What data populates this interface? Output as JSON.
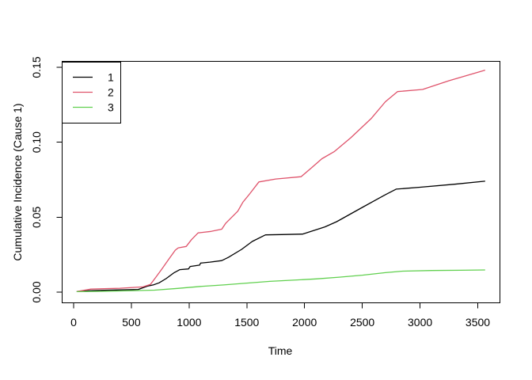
{
  "figure": {
    "background": "#FFFFFF",
    "border_color": "#000000"
  },
  "chart_data": {
    "type": "line",
    "title": "",
    "xlabel": "Time",
    "ylabel": "Cumulative Incidence (Cause 1)",
    "x_ticks": [
      "0",
      "500",
      "1000",
      "1500",
      "2000",
      "2500",
      "3000",
      "3500"
    ],
    "y_ticks": [
      "0.00",
      "0.05",
      "0.10",
      "0.15"
    ],
    "xlim": [
      -140,
      3700
    ],
    "ylim": [
      -0.007,
      0.154
    ],
    "grid": false,
    "legend_position": "top-left",
    "legend": [
      {
        "label": "1",
        "color": "#000000"
      },
      {
        "label": "2",
        "color": "#DF536B"
      },
      {
        "label": "3",
        "color": "#61D04F"
      }
    ],
    "series": [
      {
        "name": "1",
        "color": "#000000",
        "x": [
          30,
          150,
          400,
          560,
          640,
          690,
          740,
          800,
          871,
          920,
          995,
          1009,
          1091,
          1100,
          1180,
          1283,
          1340,
          1455,
          1547,
          1661,
          1800,
          1982,
          2176,
          2278,
          2500,
          2700,
          2793,
          3000,
          3300,
          3560
        ],
        "y": [
          0.0004,
          0.001,
          0.0015,
          0.0018,
          0.004,
          0.0048,
          0.0062,
          0.009,
          0.013,
          0.015,
          0.0155,
          0.0171,
          0.018,
          0.0194,
          0.02,
          0.021,
          0.0232,
          0.0285,
          0.0338,
          0.0382,
          0.0384,
          0.0387,
          0.0435,
          0.047,
          0.0565,
          0.065,
          0.0687,
          0.07,
          0.072,
          0.074
        ]
      },
      {
        "name": "2",
        "color": "#DF536B",
        "x": [
          30,
          150,
          400,
          600,
          666,
          712,
          760,
          820,
          880,
          906,
          975,
          1021,
          1078,
          1190,
          1283,
          1318,
          1421,
          1466,
          1524,
          1604,
          1750,
          1970,
          2061,
          2150,
          2256,
          2400,
          2576,
          2700,
          2805,
          3022,
          3250,
          3560
        ],
        "y": [
          0.0005,
          0.002,
          0.0026,
          0.0035,
          0.0052,
          0.01,
          0.015,
          0.0215,
          0.028,
          0.0295,
          0.0305,
          0.035,
          0.0395,
          0.0405,
          0.042,
          0.046,
          0.054,
          0.06,
          0.0655,
          0.0735,
          0.0755,
          0.077,
          0.083,
          0.089,
          0.0937,
          0.103,
          0.1157,
          0.127,
          0.1338,
          0.1352,
          0.141,
          0.148
        ]
      },
      {
        "name": "3",
        "color": "#61D04F",
        "x": [
          30,
          300,
          700,
          900,
          1100,
          1300,
          1500,
          1700,
          1900,
          2100,
          2300,
          2500,
          2700,
          2850,
          3100,
          3350,
          3560
        ],
        "y": [
          0.0003,
          0.0006,
          0.0013,
          0.0025,
          0.0038,
          0.0048,
          0.006,
          0.0072,
          0.008,
          0.0088,
          0.01,
          0.0113,
          0.013,
          0.014,
          0.0144,
          0.0146,
          0.0148
        ]
      }
    ]
  }
}
